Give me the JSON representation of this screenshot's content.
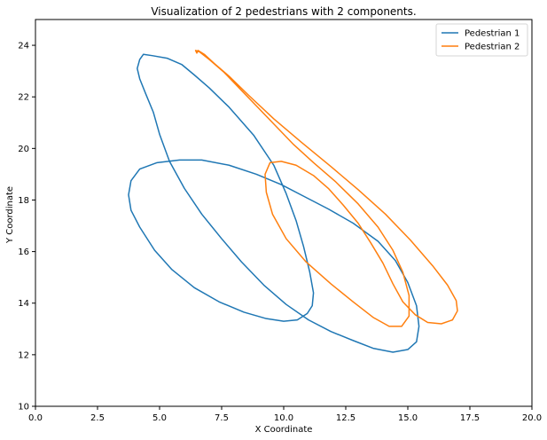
{
  "chart_data": {
    "type": "line",
    "title": "Visualization of 2 pedestrians with 2 components.",
    "xlabel": "X Coordinate",
    "ylabel": "Y Coordinate",
    "xlim": [
      0,
      20
    ],
    "ylim": [
      10,
      25
    ],
    "xticks": [
      "0.0",
      "2.5",
      "5.0",
      "7.5",
      "10.0",
      "12.5",
      "15.0",
      "17.5",
      "20.0"
    ],
    "yticks": [
      "10",
      "12",
      "14",
      "16",
      "18",
      "20",
      "22",
      "24"
    ],
    "grid": false,
    "legend": {
      "position": "top-right"
    },
    "series": [
      {
        "name": "Pedestrian 1",
        "color": "#1f77b4",
        "x": [
          4.35,
          4.7,
          5.3,
          5.9,
          6.4,
          7.0,
          7.8,
          8.8,
          9.6,
          10.1,
          10.5,
          10.8,
          11.05,
          11.2,
          11.15,
          10.95,
          10.55,
          10.0,
          9.3,
          8.4,
          7.4,
          6.4,
          5.5,
          4.8,
          4.2,
          3.85,
          3.75,
          3.85,
          4.2,
          4.9,
          5.8,
          6.7,
          7.8,
          8.9,
          9.9,
          10.8,
          11.8,
          12.8,
          13.8,
          14.5,
          15.0,
          15.35,
          15.45,
          15.35,
          15.0,
          14.4,
          13.6,
          12.8,
          11.9,
          11.0,
          10.1,
          9.2,
          8.3,
          7.5,
          6.7,
          6.0,
          5.4,
          5.0,
          4.75,
          4.45,
          4.2,
          4.1,
          4.2,
          4.35
        ],
        "y": [
          23.65,
          23.6,
          23.5,
          23.25,
          22.85,
          22.35,
          21.6,
          20.5,
          19.35,
          18.25,
          17.2,
          16.2,
          15.2,
          14.4,
          13.9,
          13.6,
          13.35,
          13.3,
          13.4,
          13.65,
          14.05,
          14.6,
          15.3,
          16.05,
          16.95,
          17.6,
          18.2,
          18.75,
          19.2,
          19.45,
          19.55,
          19.55,
          19.35,
          19.0,
          18.6,
          18.15,
          17.65,
          17.1,
          16.4,
          15.65,
          14.8,
          13.9,
          13.1,
          12.5,
          12.2,
          12.1,
          12.25,
          12.55,
          12.9,
          13.35,
          13.95,
          14.7,
          15.6,
          16.5,
          17.45,
          18.45,
          19.5,
          20.55,
          21.4,
          22.1,
          22.7,
          23.1,
          23.45,
          23.65
        ]
      },
      {
        "name": "Pedestrian 2",
        "color": "#ff7f0e",
        "x": [
          6.55,
          6.8,
          7.2,
          7.8,
          8.6,
          9.6,
          10.7,
          11.9,
          13.0,
          14.1,
          15.1,
          16.0,
          16.6,
          16.95,
          17.0,
          16.8,
          16.35,
          15.8,
          15.3,
          14.8,
          14.4,
          14.0,
          13.5,
          13.0,
          12.4,
          11.8,
          11.2,
          10.5,
          9.9,
          9.45,
          9.25,
          9.3,
          9.55,
          10.1,
          10.9,
          11.9,
          12.8,
          13.6,
          14.25,
          14.75,
          15.05,
          15.05,
          14.8,
          14.4,
          13.8,
          13.0,
          12.1,
          11.2,
          10.4,
          9.7,
          9.0,
          8.3,
          7.6,
          7.0,
          6.6,
          6.45,
          6.5,
          6.55
        ],
        "y": [
          23.8,
          23.65,
          23.3,
          22.8,
          22.05,
          21.15,
          20.25,
          19.3,
          18.4,
          17.45,
          16.45,
          15.45,
          14.7,
          14.1,
          13.7,
          13.35,
          13.2,
          13.25,
          13.55,
          14.05,
          14.75,
          15.55,
          16.35,
          17.1,
          17.8,
          18.45,
          18.95,
          19.35,
          19.5,
          19.45,
          19.0,
          18.3,
          17.45,
          16.5,
          15.6,
          14.75,
          14.05,
          13.45,
          13.1,
          13.1,
          13.5,
          14.3,
          15.2,
          16.05,
          16.95,
          17.85,
          18.7,
          19.45,
          20.15,
          20.85,
          21.55,
          22.25,
          22.95,
          23.45,
          23.75,
          23.8,
          23.7,
          23.8
        ]
      }
    ]
  }
}
